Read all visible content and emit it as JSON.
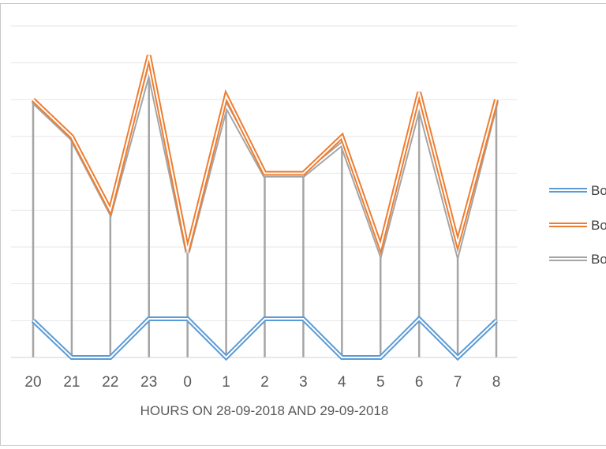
{
  "page": {
    "top_fragment": "' '"
  },
  "chart_data": {
    "type": "line",
    "title": "",
    "xlabel": "HOURS ON 28-09-2018 AND 29-09-2018",
    "ylabel": "",
    "categories": [
      "20",
      "21",
      "22",
      "23",
      "0",
      "1",
      "2",
      "3",
      "4",
      "5",
      "6",
      "7",
      "8"
    ],
    "ylim": [
      0,
      9
    ],
    "grid": true,
    "legend_position": "right",
    "series": [
      {
        "name": "Bo",
        "color": "#5b9bd5",
        "values": [
          1,
          0,
          0,
          1.05,
          1.05,
          0,
          1.05,
          1.05,
          0,
          0,
          1.05,
          0,
          1
        ]
      },
      {
        "name": "Bo",
        "color": "#ed7d31",
        "values": [
          7,
          6,
          4,
          8.2,
          2.9,
          7.1,
          5,
          5,
          6,
          3,
          7.2,
          3.1,
          7
        ]
      },
      {
        "name": "Bo",
        "color": "#a5a5a5",
        "values": [
          6.95,
          5.95,
          3.95,
          7.8,
          2.85,
          6.85,
          4.95,
          4.95,
          5.8,
          2.85,
          6.85,
          2.85,
          6.95
        ]
      }
    ]
  }
}
